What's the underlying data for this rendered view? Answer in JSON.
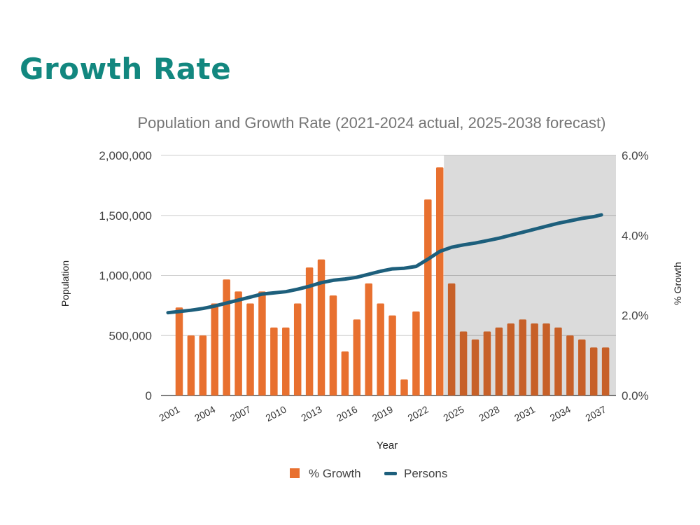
{
  "page": {
    "title": "Growth Rate"
  },
  "colors": {
    "title": "#12877f",
    "bars": "#e8702f",
    "line": "#1d5f7c",
    "forecast_shade": "#dcdcdc"
  },
  "chart_data": {
    "type": "bar+line",
    "title": "Population and Growth Rate (2021-2024 actual, 2025-2038 forecast)",
    "xlabel": "Year",
    "ylabel_left": "Population",
    "ylabel_right": "% Growth",
    "ylim_left": [
      0,
      2000000
    ],
    "ylim_right": [
      0,
      6.0
    ],
    "left_ticks": [
      "0",
      "500,000",
      "1,000,000",
      "1,500,000",
      "2,000,000"
    ],
    "right_ticks": [
      "0.0%",
      "2.0%",
      "4.0%",
      "6.0%"
    ],
    "x_tick_labels": [
      "2001",
      "2004",
      "2007",
      "2010",
      "2013",
      "2016",
      "2019",
      "2022",
      "2025",
      "2028",
      "2031",
      "2034",
      "2037"
    ],
    "grid": true,
    "legend_position": "bottom",
    "forecast_shaded_from": 2024,
    "categories": [
      2001,
      2002,
      2003,
      2004,
      2005,
      2006,
      2007,
      2008,
      2009,
      2010,
      2011,
      2012,
      2013,
      2014,
      2015,
      2016,
      2017,
      2018,
      2019,
      2020,
      2021,
      2022,
      2023,
      2024,
      2025,
      2026,
      2027,
      2028,
      2029,
      2030,
      2031,
      2032,
      2033,
      2034,
      2035,
      2036,
      2037
    ],
    "series": [
      {
        "name": "% Growth",
        "type": "bar",
        "axis": "right",
        "values": [
          2.2,
          1.5,
          1.5,
          2.3,
          2.9,
          2.6,
          2.3,
          2.6,
          1.7,
          1.7,
          2.3,
          3.2,
          3.4,
          2.5,
          1.1,
          1.9,
          2.8,
          2.3,
          2.0,
          0.4,
          2.1,
          4.9,
          5.7,
          2.8,
          1.6,
          1.4,
          1.6,
          1.7,
          1.8,
          1.9,
          1.8,
          1.8,
          1.7,
          1.5,
          1.4,
          1.2,
          1.2
        ]
      },
      {
        "name": "Persons",
        "type": "line",
        "axis": "left",
        "values": [
          690000,
          710000,
          725000,
          745000,
          770000,
          795000,
          820000,
          845000,
          855000,
          865000,
          885000,
          910000,
          940000,
          960000,
          970000,
          985000,
          1010000,
          1035000,
          1055000,
          1060000,
          1075000,
          1135000,
          1200000,
          1235000,
          1255000,
          1270000,
          1290000,
          1310000,
          1335000,
          1360000,
          1385000,
          1410000,
          1435000,
          1455000,
          1475000,
          1490000,
          1505000
        ]
      }
    ]
  }
}
